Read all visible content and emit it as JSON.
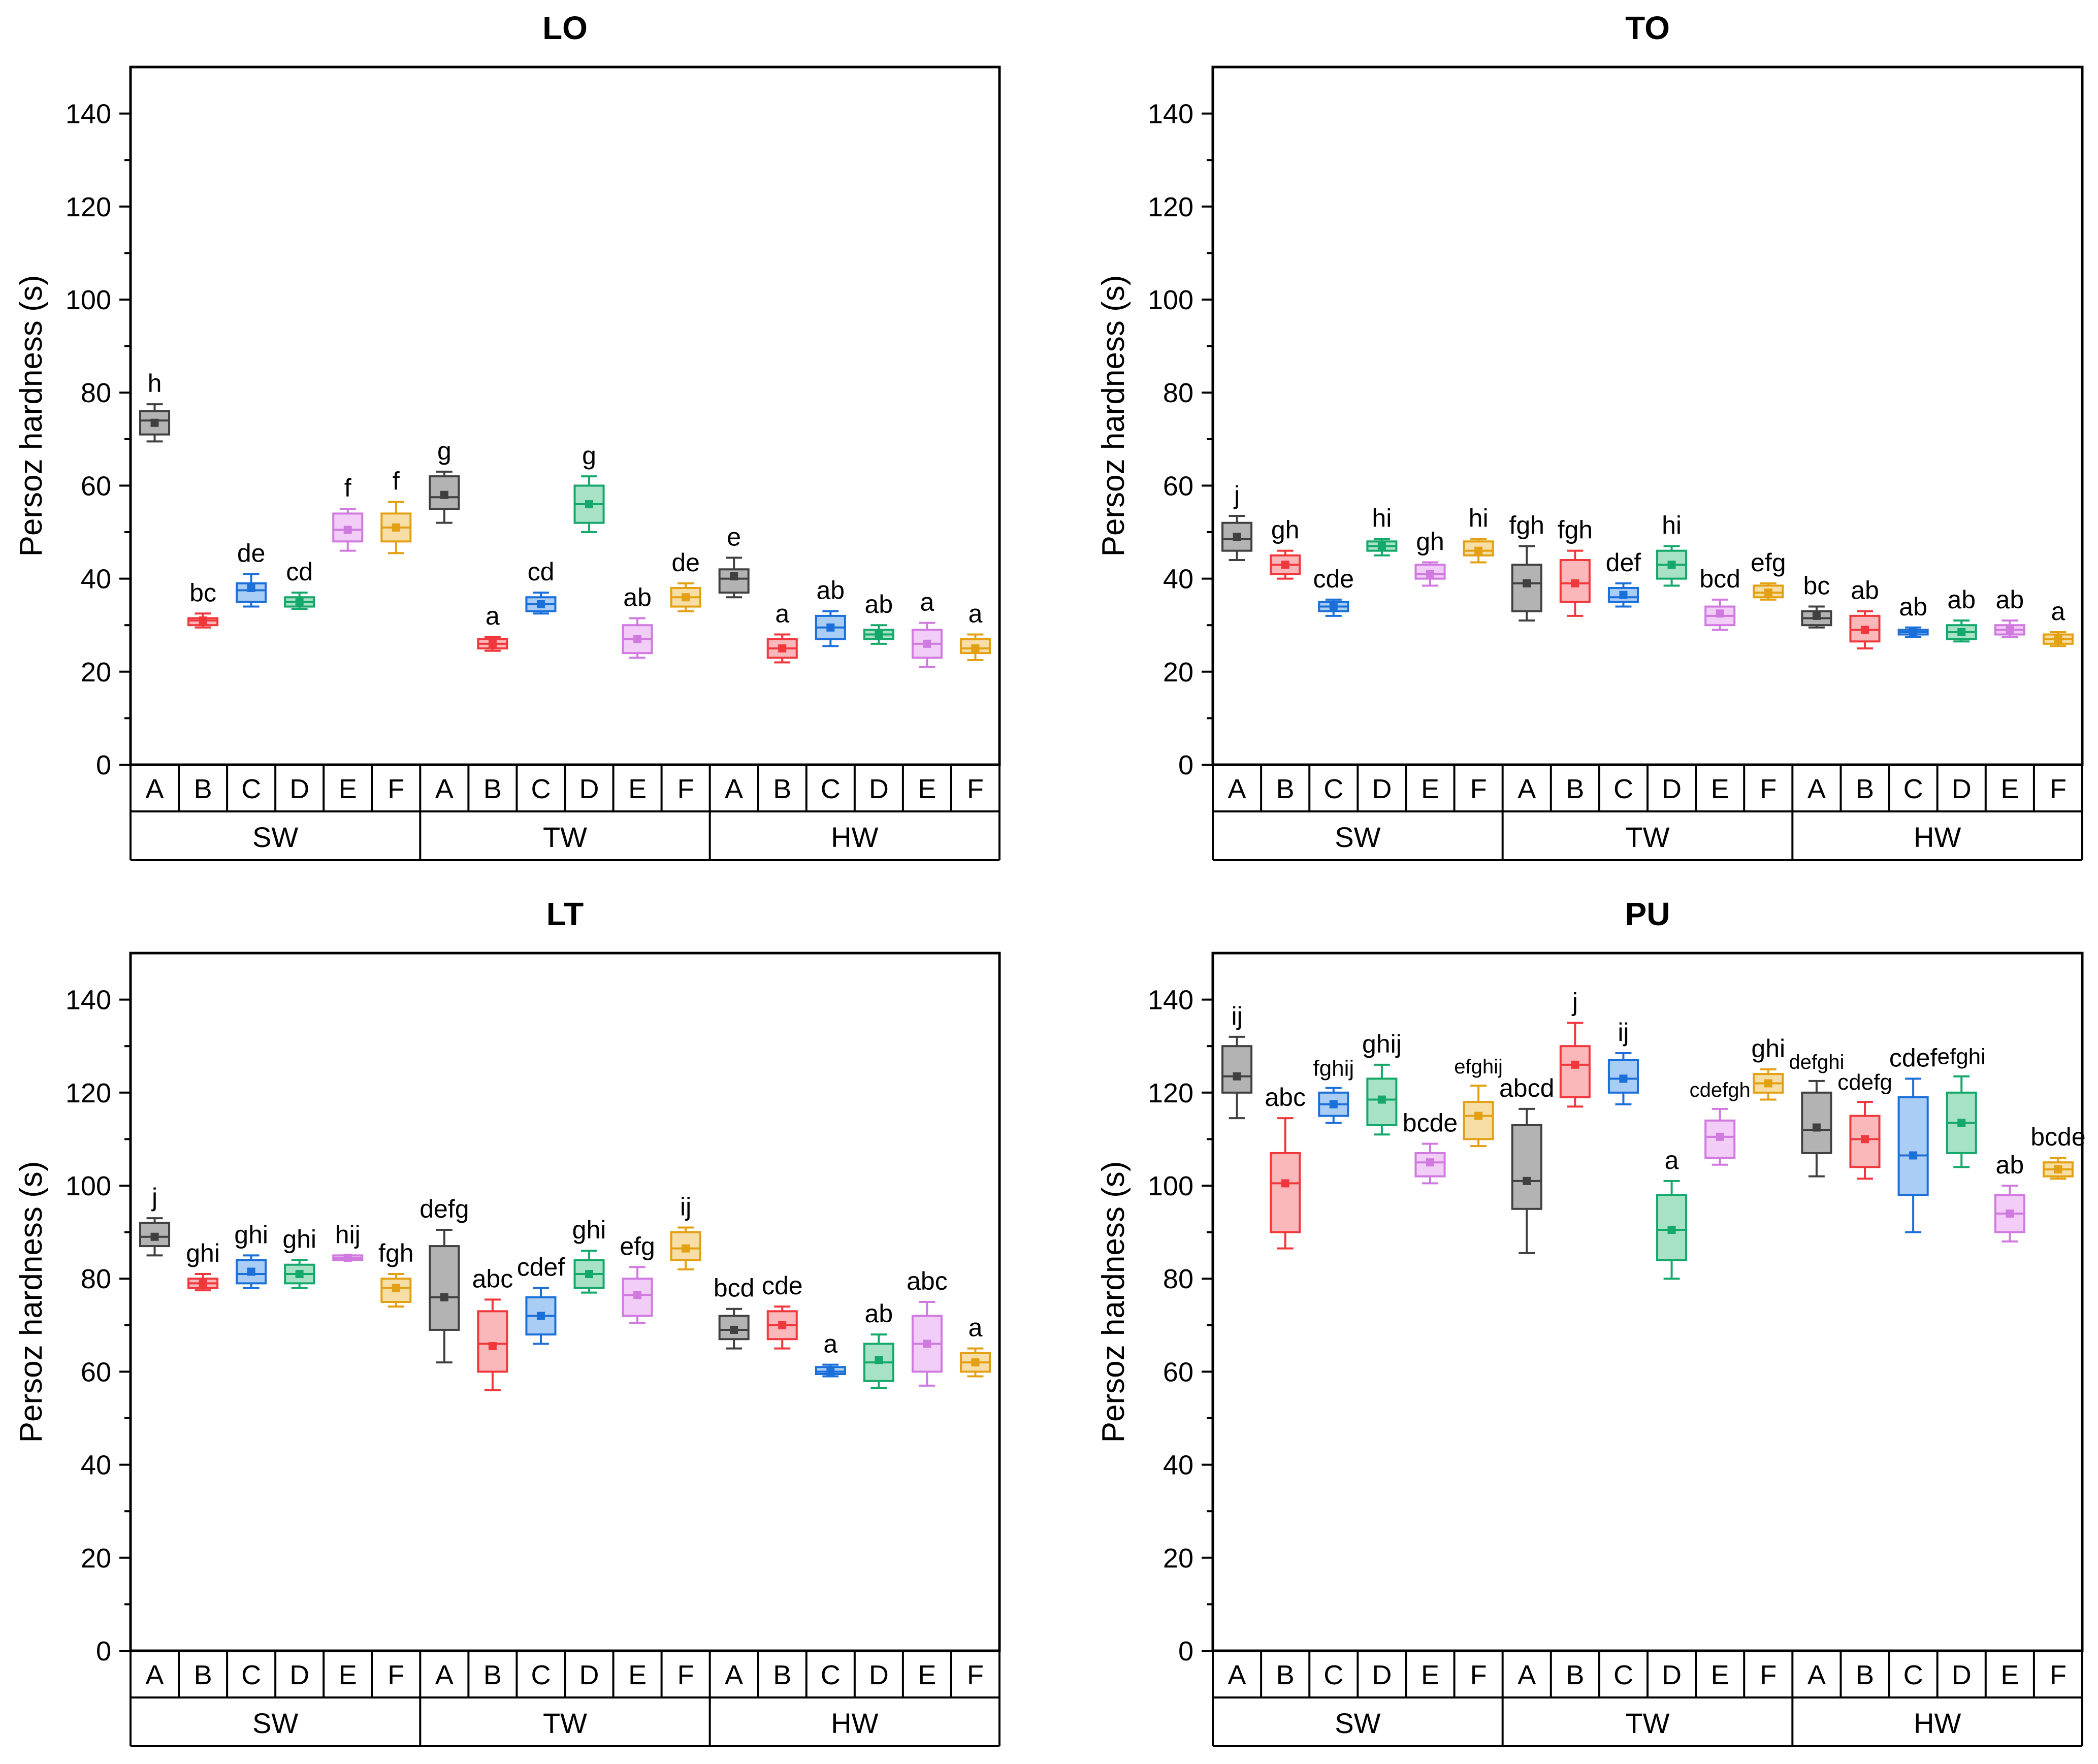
{
  "chart_data": {
    "type": "box",
    "ylabel": "Persoz hardness (s)",
    "ylim": [
      0,
      150
    ],
    "yticks": [
      0,
      20,
      40,
      60,
      80,
      100,
      120,
      140
    ],
    "treatments": [
      "A",
      "B",
      "C",
      "D",
      "E",
      "F"
    ],
    "wood_types": [
      "SW",
      "TW",
      "HW"
    ],
    "colors": {
      "A": {
        "stroke": "#404040",
        "fill": "#b3b3b3"
      },
      "B": {
        "stroke": "#f0383c",
        "fill": "#fbb8ba"
      },
      "C": {
        "stroke": "#1a6fd9",
        "fill": "#a9cdf5"
      },
      "D": {
        "stroke": "#14a86a",
        "fill": "#a8e2c6"
      },
      "E": {
        "stroke": "#d07ae0",
        "fill": "#f2cdf8"
      },
      "F": {
        "stroke": "#e3a012",
        "fill": "#f6dea6"
      }
    },
    "panels": [
      {
        "title": "LO",
        "boxes": [
          {
            "group": "SW",
            "t": "A",
            "min": 69.5,
            "q1": 71,
            "med": 74,
            "q3": 76,
            "max": 77.5,
            "mean": 73.5,
            "label": "h"
          },
          {
            "group": "SW",
            "t": "B",
            "min": 29.5,
            "q1": 30,
            "med": 31,
            "q3": 31.5,
            "max": 32.5,
            "mean": 31,
            "label": "bc"
          },
          {
            "group": "SW",
            "t": "C",
            "min": 34,
            "q1": 35,
            "med": 37.5,
            "q3": 39,
            "max": 41,
            "mean": 38,
            "label": "de"
          },
          {
            "group": "SW",
            "t": "D",
            "min": 33.5,
            "q1": 34,
            "med": 35,
            "q3": 36,
            "max": 37,
            "mean": 35,
            "label": "cd"
          },
          {
            "group": "SW",
            "t": "E",
            "min": 46,
            "q1": 48,
            "med": 50.5,
            "q3": 54,
            "max": 55,
            "mean": 50.5,
            "label": "f"
          },
          {
            "group": "SW",
            "t": "F",
            "min": 45.5,
            "q1": 48,
            "med": 51,
            "q3": 54,
            "max": 56.5,
            "mean": 51,
            "label": "f"
          },
          {
            "group": "TW",
            "t": "A",
            "min": 52,
            "q1": 55,
            "med": 57.5,
            "q3": 62,
            "max": 63,
            "mean": 58,
            "label": "g"
          },
          {
            "group": "TW",
            "t": "B",
            "min": 24.5,
            "q1": 25,
            "med": 26,
            "q3": 27,
            "max": 27.5,
            "mean": 26,
            "label": "a"
          },
          {
            "group": "TW",
            "t": "C",
            "min": 32.5,
            "q1": 33,
            "med": 34.5,
            "q3": 36,
            "max": 37,
            "mean": 34.5,
            "label": "cd"
          },
          {
            "group": "TW",
            "t": "D",
            "min": 50,
            "q1": 52,
            "med": 56,
            "q3": 60,
            "max": 62,
            "mean": 56,
            "label": "g"
          },
          {
            "group": "TW",
            "t": "E",
            "min": 23,
            "q1": 24,
            "med": 27,
            "q3": 30,
            "max": 31.5,
            "mean": 27,
            "label": "ab"
          },
          {
            "group": "TW",
            "t": "F",
            "min": 33,
            "q1": 34,
            "med": 36,
            "q3": 38,
            "max": 39,
            "mean": 36,
            "label": "de"
          },
          {
            "group": "HW",
            "t": "A",
            "min": 36,
            "q1": 37,
            "med": 40,
            "q3": 42,
            "max": 44.5,
            "mean": 40.5,
            "label": "e"
          },
          {
            "group": "HW",
            "t": "B",
            "min": 22,
            "q1": 23,
            "med": 25,
            "q3": 27,
            "max": 28,
            "mean": 25,
            "label": "a"
          },
          {
            "group": "HW",
            "t": "C",
            "min": 25.5,
            "q1": 27,
            "med": 29.5,
            "q3": 32,
            "max": 33,
            "mean": 29.5,
            "label": "ab"
          },
          {
            "group": "HW",
            "t": "D",
            "min": 26,
            "q1": 27,
            "med": 28,
            "q3": 29,
            "max": 30,
            "mean": 28,
            "label": "ab"
          },
          {
            "group": "HW",
            "t": "E",
            "min": 21,
            "q1": 23,
            "med": 26,
            "q3": 29,
            "max": 30.5,
            "mean": 26,
            "label": "a"
          },
          {
            "group": "HW",
            "t": "F",
            "min": 22.5,
            "q1": 24,
            "med": 25,
            "q3": 27,
            "max": 28,
            "mean": 25,
            "label": "a"
          }
        ]
      },
      {
        "title": "TO",
        "boxes": [
          {
            "group": "SW",
            "t": "A",
            "min": 44,
            "q1": 46,
            "med": 48.5,
            "q3": 52,
            "max": 53.5,
            "mean": 49,
            "label": "j"
          },
          {
            "group": "SW",
            "t": "B",
            "min": 40,
            "q1": 41,
            "med": 43,
            "q3": 45,
            "max": 46,
            "mean": 43,
            "label": "gh"
          },
          {
            "group": "SW",
            "t": "C",
            "min": 32,
            "q1": 33,
            "med": 34,
            "q3": 35,
            "max": 35.5,
            "mean": 34,
            "label": "cde"
          },
          {
            "group": "SW",
            "t": "D",
            "min": 45,
            "q1": 46,
            "med": 47,
            "q3": 48,
            "max": 48.5,
            "mean": 47,
            "label": "hi"
          },
          {
            "group": "SW",
            "t": "E",
            "min": 38.5,
            "q1": 40,
            "med": 41,
            "q3": 43,
            "max": 43.5,
            "mean": 41,
            "label": "gh"
          },
          {
            "group": "SW",
            "t": "F",
            "min": 43.5,
            "q1": 45,
            "med": 46,
            "q3": 48,
            "max": 48.5,
            "mean": 46,
            "label": "hi"
          },
          {
            "group": "TW",
            "t": "A",
            "min": 31,
            "q1": 33,
            "med": 39,
            "q3": 43,
            "max": 47,
            "mean": 39,
            "label": "fgh"
          },
          {
            "group": "TW",
            "t": "B",
            "min": 32,
            "q1": 35,
            "med": 39,
            "q3": 44,
            "max": 46,
            "mean": 39,
            "label": "fgh"
          },
          {
            "group": "TW",
            "t": "C",
            "min": 34,
            "q1": 35,
            "med": 36,
            "q3": 38,
            "max": 39,
            "mean": 36.5,
            "label": "def"
          },
          {
            "group": "TW",
            "t": "D",
            "min": 38.5,
            "q1": 40,
            "med": 43,
            "q3": 46,
            "max": 47,
            "mean": 43,
            "label": "hi"
          },
          {
            "group": "TW",
            "t": "E",
            "min": 29,
            "q1": 30,
            "med": 32,
            "q3": 34,
            "max": 35.5,
            "mean": 32.5,
            "label": "bcd"
          },
          {
            "group": "TW",
            "t": "F",
            "min": 35.5,
            "q1": 36,
            "med": 37,
            "q3": 38.5,
            "max": 39,
            "mean": 37,
            "label": "efg"
          },
          {
            "group": "HW",
            "t": "A",
            "min": 29.5,
            "q1": 30,
            "med": 31.5,
            "q3": 33,
            "max": 34,
            "mean": 32,
            "label": "bc"
          },
          {
            "group": "HW",
            "t": "B",
            "min": 25,
            "q1": 26.5,
            "med": 29,
            "q3": 32,
            "max": 33,
            "mean": 29,
            "label": "ab"
          },
          {
            "group": "HW",
            "t": "C",
            "min": 27.5,
            "q1": 28,
            "med": 28.5,
            "q3": 29,
            "max": 29.5,
            "mean": 28.5,
            "label": "ab"
          },
          {
            "group": "HW",
            "t": "D",
            "min": 26.5,
            "q1": 27,
            "med": 28.5,
            "q3": 30,
            "max": 31,
            "mean": 28.5,
            "label": "ab"
          },
          {
            "group": "HW",
            "t": "E",
            "min": 27.5,
            "q1": 28,
            "med": 29,
            "q3": 30,
            "max": 31,
            "mean": 29,
            "label": "ab"
          },
          {
            "group": "HW",
            "t": "F",
            "min": 25.5,
            "q1": 26,
            "med": 27,
            "q3": 28,
            "max": 28.5,
            "mean": 27,
            "label": "a"
          }
        ]
      },
      {
        "title": "LT",
        "boxes": [
          {
            "group": "SW",
            "t": "A",
            "min": 85,
            "q1": 87,
            "med": 89,
            "q3": 92,
            "max": 93,
            "mean": 89,
            "label": "j"
          },
          {
            "group": "SW",
            "t": "B",
            "min": 77.5,
            "q1": 78,
            "med": 79,
            "q3": 80,
            "max": 81,
            "mean": 79,
            "label": "ghi"
          },
          {
            "group": "SW",
            "t": "C",
            "min": 78,
            "q1": 79,
            "med": 81,
            "q3": 84,
            "max": 85,
            "mean": 81.5,
            "label": "ghi"
          },
          {
            "group": "SW",
            "t": "D",
            "min": 78,
            "q1": 79,
            "med": 81,
            "q3": 83,
            "max": 84,
            "mean": 81,
            "label": "ghi"
          },
          {
            "group": "SW",
            "t": "E",
            "min": 84,
            "q1": 84,
            "med": 84.5,
            "q3": 85,
            "max": 85,
            "mean": 84.5,
            "label": "hij"
          },
          {
            "group": "SW",
            "t": "F",
            "min": 74,
            "q1": 75,
            "med": 78,
            "q3": 80,
            "max": 81,
            "mean": 78,
            "label": "fgh"
          },
          {
            "group": "TW",
            "t": "A",
            "min": 62,
            "q1": 69,
            "med": 76,
            "q3": 87,
            "max": 90.5,
            "mean": 76,
            "label": "defg"
          },
          {
            "group": "TW",
            "t": "B",
            "min": 56,
            "q1": 60,
            "med": 66,
            "q3": 73,
            "max": 75.5,
            "mean": 65.5,
            "label": "abc"
          },
          {
            "group": "TW",
            "t": "C",
            "min": 66,
            "q1": 68,
            "med": 72,
            "q3": 76,
            "max": 78,
            "mean": 72,
            "label": "cdef"
          },
          {
            "group": "TW",
            "t": "D",
            "min": 77,
            "q1": 78,
            "med": 81,
            "q3": 84,
            "max": 86,
            "mean": 81,
            "label": "ghi"
          },
          {
            "group": "TW",
            "t": "E",
            "min": 70.5,
            "q1": 72,
            "med": 76.5,
            "q3": 80,
            "max": 82.5,
            "mean": 76.5,
            "label": "efg"
          },
          {
            "group": "TW",
            "t": "F",
            "min": 82,
            "q1": 84,
            "med": 86.5,
            "q3": 90,
            "max": 91,
            "mean": 86.5,
            "label": "ij"
          },
          {
            "group": "HW",
            "t": "A",
            "min": 65,
            "q1": 67,
            "med": 69,
            "q3": 72,
            "max": 73.5,
            "mean": 69,
            "label": "bcd"
          },
          {
            "group": "HW",
            "t": "B",
            "min": 65,
            "q1": 67,
            "med": 70,
            "q3": 73,
            "max": 74,
            "mean": 70,
            "label": "cde"
          },
          {
            "group": "HW",
            "t": "C",
            "min": 59,
            "q1": 59.5,
            "med": 60,
            "q3": 61,
            "max": 61.5,
            "mean": 60,
            "label": "a"
          },
          {
            "group": "HW",
            "t": "D",
            "min": 56.5,
            "q1": 58,
            "med": 62,
            "q3": 66,
            "max": 68,
            "mean": 62.5,
            "label": "ab"
          },
          {
            "group": "HW",
            "t": "E",
            "min": 57,
            "q1": 60,
            "med": 66,
            "q3": 72,
            "max": 75,
            "mean": 66,
            "label": "abc"
          },
          {
            "group": "HW",
            "t": "F",
            "min": 59,
            "q1": 60,
            "med": 62,
            "q3": 64,
            "max": 65,
            "mean": 62,
            "label": "a"
          }
        ]
      },
      {
        "title": "PU",
        "boxes": [
          {
            "group": "SW",
            "t": "A",
            "min": 114.5,
            "q1": 120,
            "med": 123.5,
            "q3": 130,
            "max": 132,
            "mean": 123.5,
            "label": "ij"
          },
          {
            "group": "SW",
            "t": "B",
            "min": 86.5,
            "q1": 90,
            "med": 100.5,
            "q3": 107,
            "max": 114.5,
            "mean": 100.5,
            "label": "abc"
          },
          {
            "group": "SW",
            "t": "C",
            "min": 113.5,
            "q1": 115,
            "med": 117.5,
            "q3": 120,
            "max": 121,
            "mean": 117.5,
            "label": "fghij"
          },
          {
            "group": "SW",
            "t": "D",
            "min": 111,
            "q1": 113,
            "med": 118.5,
            "q3": 123,
            "max": 126,
            "mean": 118.5,
            "label": "ghij"
          },
          {
            "group": "SW",
            "t": "E",
            "min": 100.5,
            "q1": 102,
            "med": 105,
            "q3": 107,
            "max": 109,
            "mean": 105,
            "label": "bcde"
          },
          {
            "group": "SW",
            "t": "F",
            "min": 108.5,
            "q1": 110,
            "med": 115,
            "q3": 118,
            "max": 121.5,
            "mean": 115,
            "label": "efghij"
          },
          {
            "group": "TW",
            "t": "A",
            "min": 85.5,
            "q1": 95,
            "med": 101,
            "q3": 113,
            "max": 116.5,
            "mean": 101,
            "label": "abcd"
          },
          {
            "group": "TW",
            "t": "B",
            "min": 117,
            "q1": 119,
            "med": 126,
            "q3": 130,
            "max": 135,
            "mean": 126,
            "label": "j"
          },
          {
            "group": "TW",
            "t": "C",
            "min": 117.5,
            "q1": 120,
            "med": 123,
            "q3": 127,
            "max": 128.5,
            "mean": 123,
            "label": "ij"
          },
          {
            "group": "TW",
            "t": "D",
            "min": 80,
            "q1": 84,
            "med": 90.5,
            "q3": 98,
            "max": 101,
            "mean": 90.5,
            "label": "a"
          },
          {
            "group": "TW",
            "t": "E",
            "min": 104.5,
            "q1": 106,
            "med": 110.5,
            "q3": 114,
            "max": 116.5,
            "mean": 110.5,
            "label": "cdefgh"
          },
          {
            "group": "TW",
            "t": "F",
            "min": 118.5,
            "q1": 120,
            "med": 122,
            "q3": 124,
            "max": 125,
            "mean": 122,
            "label": "ghi"
          },
          {
            "group": "HW",
            "t": "A",
            "min": 102,
            "q1": 107,
            "med": 112,
            "q3": 120,
            "max": 122.5,
            "mean": 112.5,
            "label": "defghi"
          },
          {
            "group": "HW",
            "t": "B",
            "min": 101.5,
            "q1": 104,
            "med": 110,
            "q3": 115,
            "max": 118,
            "mean": 110,
            "label": "cdefg"
          },
          {
            "group": "HW",
            "t": "C",
            "min": 90,
            "q1": 98,
            "med": 106.5,
            "q3": 119,
            "max": 123,
            "mean": 106.5,
            "label": "cdef"
          },
          {
            "group": "HW",
            "t": "D",
            "min": 104,
            "q1": 107,
            "med": 113.5,
            "q3": 120,
            "max": 123.5,
            "mean": 113.5,
            "label": "efghi"
          },
          {
            "group": "HW",
            "t": "E",
            "min": 88,
            "q1": 90,
            "med": 94,
            "q3": 98,
            "max": 100,
            "mean": 94,
            "label": "ab"
          },
          {
            "group": "HW",
            "t": "F",
            "min": 101.5,
            "q1": 102,
            "med": 103.5,
            "q3": 105,
            "max": 106,
            "mean": 103.5,
            "label": "bcde"
          }
        ]
      }
    ]
  }
}
